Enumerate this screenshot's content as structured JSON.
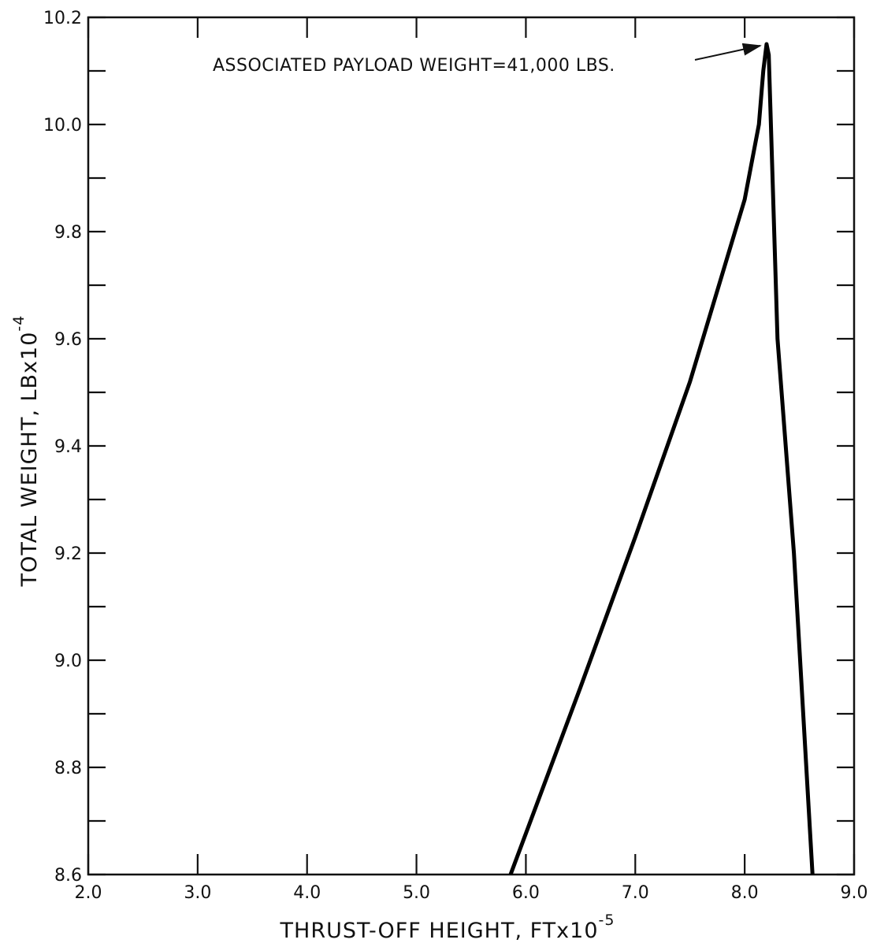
{
  "chart_data": {
    "type": "line",
    "title": "",
    "xlabel": "THRUST-OFF HEIGHT, FTx10",
    "xlabel_exponent": "-5",
    "ylabel": "TOTAL WEIGHT, LBx10",
    "ylabel_exponent": "-4",
    "xlim": [
      2.0,
      9.0
    ],
    "ylim": [
      8.6,
      10.2
    ],
    "x_ticks": [
      "2.0",
      "3.0",
      "4.0",
      "5.0",
      "6.0",
      "7.0",
      "8.0",
      "9.0"
    ],
    "y_ticks": [
      "8.6",
      "8.8",
      "9.0",
      "9.2",
      "9.4",
      "9.6",
      "9.8",
      "10.0",
      "10.2"
    ],
    "x_tick_values": [
      2.0,
      3.0,
      4.0,
      5.0,
      6.0,
      7.0,
      8.0,
      9.0
    ],
    "y_tick_values": [
      8.6,
      8.8,
      9.0,
      9.2,
      9.4,
      9.6,
      9.8,
      10.0,
      10.2
    ],
    "grid": false,
    "line_color": "#000000",
    "series": [
      {
        "x": [
          5.86,
          6.5,
          7.0,
          7.5,
          8.0,
          8.13,
          8.17,
          8.2,
          8.22,
          8.3,
          8.45,
          8.62
        ],
        "y": [
          8.6,
          8.95,
          9.23,
          9.52,
          9.86,
          10.0,
          10.1,
          10.15,
          10.13,
          9.6,
          9.2,
          8.6
        ]
      }
    ],
    "annotations": [
      {
        "text": "ASSOCIATED PAYLOAD WEIGHT=41,000 LBS.",
        "target_x": 8.2,
        "target_y": 10.15
      }
    ]
  }
}
